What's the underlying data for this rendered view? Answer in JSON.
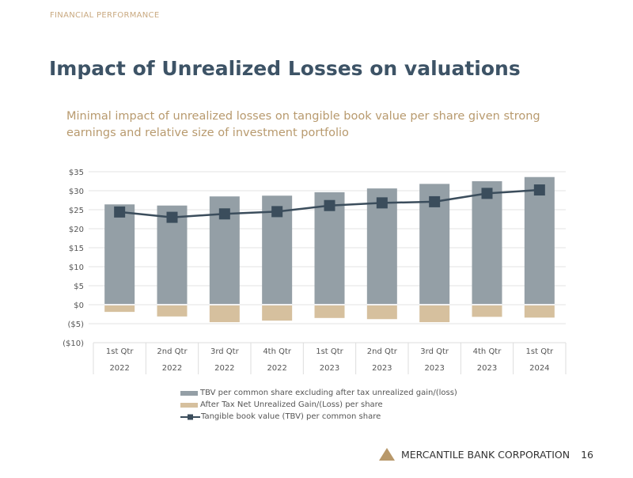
{
  "header": {
    "kicker": "FINANCIAL PERFORMANCE",
    "title": "Impact of Unrealized Losses on valuations",
    "subtitle": "Minimal impact of unrealized losses on tangible book value per share given strong earnings and relative size of investment portfolio"
  },
  "footer": {
    "company": "MERCANTILE BANK CORPORATION",
    "page": "16"
  },
  "colors": {
    "bar_tbv_ex": "#949fa6",
    "bar_unrealized": "#d6c09e",
    "line": "#3b4d5c",
    "title": "#3d5366",
    "accent": "#b8986a"
  },
  "chart_data": {
    "type": "bar",
    "title": "",
    "categories": [
      [
        "1st Qtr",
        "2022"
      ],
      [
        "2nd Qtr",
        "2022"
      ],
      [
        "3rd Qtr",
        "2022"
      ],
      [
        "4th Qtr",
        "2022"
      ],
      [
        "1st Qtr",
        "2023"
      ],
      [
        "2nd Qtr",
        "2023"
      ],
      [
        "3rd Qtr",
        "2023"
      ],
      [
        "4th Qtr",
        "2023"
      ],
      [
        "1st Qtr",
        "2024"
      ]
    ],
    "ylim": [
      -10,
      35
    ],
    "yticks": [
      35,
      30,
      25,
      20,
      15,
      10,
      5,
      0,
      -5,
      -10
    ],
    "ytick_labels": [
      "$35",
      "$30",
      "$25",
      "$20",
      "$15",
      "$10",
      "$5",
      "$0",
      "($5)",
      "($10)"
    ],
    "grid": true,
    "legend_position": "bottom",
    "series": [
      {
        "name": "TBV per common share excluding after tax unrealized gain/(loss)",
        "type": "bar",
        "values": [
          26.4,
          26.1,
          28.5,
          28.7,
          29.6,
          30.6,
          31.8,
          32.5,
          33.6
        ]
      },
      {
        "name": "After Tax Net Unrealized Gain/(Loss) per share",
        "type": "bar",
        "values": [
          -1.9,
          -3.1,
          -4.6,
          -4.2,
          -3.5,
          -3.8,
          -4.6,
          -3.2,
          -3.4
        ]
      },
      {
        "name": "Tangible book value (TBV) per common share",
        "type": "line",
        "values": [
          24.4,
          23.0,
          23.9,
          24.5,
          26.1,
          26.8,
          27.1,
          29.3,
          30.2
        ]
      }
    ]
  }
}
